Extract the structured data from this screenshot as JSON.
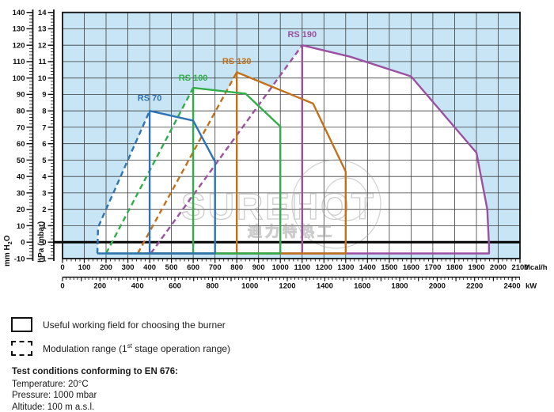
{
  "watermark": {
    "brand": "SUREHOT",
    "subtext": "迪力特热工"
  },
  "legend": {
    "working_field_label": "Useful working field for choosing the burner",
    "modulation_prefix": "Modulation range (1",
    "modulation_sup": "st",
    "modulation_suffix": " stage operation range)"
  },
  "test_conditions": {
    "title": "Test conditions conforming to EN 676:",
    "temperature": "Temperature: 20°C",
    "pressure": "Pressure: 1000 mbar",
    "altitude": "Altitude: 100 m a.s.l."
  },
  "chart_data": {
    "type": "line",
    "description": "Burner useful working fields: fan pressure (hPa / mm H2O) versus heat output (Mcal/h and kW). Solid outline = useful working field, dashed = modulation range (1st stage).",
    "x_axis_primary": {
      "unit": "Mcal/h",
      "min": 0,
      "max": 2100,
      "label_step": 100,
      "minor_step": 20
    },
    "x_axis_secondary": {
      "unit": "kW",
      "min": 0,
      "max": 2442,
      "label_step": 200,
      "tick_step": 100,
      "minor_step": 20,
      "last_label": 2400
    },
    "y_axis_inner": {
      "unit": "hPa (mbar)",
      "min": -1,
      "max": 14,
      "label_step": 1,
      "minor_step": 0.2
    },
    "y_axis_outer": {
      "unit_parts": [
        "mm H",
        "2",
        "O"
      ],
      "min": -10,
      "max": 140,
      "label_step": 10,
      "minor_step": 2
    },
    "plot_bg": "#c7e5f4",
    "grid_color": "#3d3d3d",
    "field_fill": "#ffffff",
    "zero_line_color": "#000000",
    "bottom_level": -0.69,
    "series": [
      {
        "name": "RS 190",
        "color": "#9c50a1",
        "label_at": [
          1100,
          12.5
        ],
        "modulation": [
          [
            405,
            -0.69
          ],
          [
            1100,
            12
          ]
        ],
        "top": [
          [
            1100,
            12
          ],
          [
            1320,
            11.3
          ],
          [
            1600,
            10.1
          ],
          [
            1800,
            7.0
          ],
          [
            1900,
            5.45
          ],
          [
            1950,
            2.0
          ],
          [
            1958,
            -0.2
          ]
        ]
      },
      {
        "name": "RS 130",
        "color": "#c3701a",
        "label_at": [
          800,
          10.85
        ],
        "modulation": [
          [
            345,
            -0.69
          ],
          [
            800,
            10.35
          ]
        ],
        "top": [
          [
            800,
            10.35
          ],
          [
            1150,
            8.45
          ],
          [
            1300,
            4.3
          ]
        ]
      },
      {
        "name": "RS 100",
        "color": "#2fae4a",
        "label_at": [
          600,
          9.85
        ],
        "modulation": [
          [
            200,
            -0.69
          ],
          [
            600,
            9.4
          ]
        ],
        "top": [
          [
            600,
            9.4
          ],
          [
            840,
            9.05
          ],
          [
            1000,
            7.05
          ]
        ]
      },
      {
        "name": "RS 70",
        "color": "#2e74b5",
        "label_at": [
          400,
          8.62
        ],
        "modulation": [
          [
            160,
            -0.69
          ],
          [
            163,
            0.9
          ],
          [
            240,
            3.2
          ],
          [
            400,
            8
          ]
        ],
        "top": [
          [
            400,
            8
          ],
          [
            600,
            7.4
          ],
          [
            700,
            4.9
          ]
        ]
      }
    ]
  }
}
